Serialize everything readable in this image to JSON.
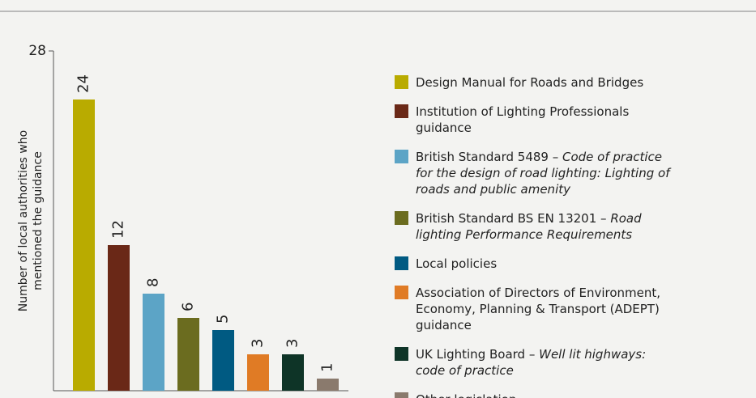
{
  "chart_data": {
    "type": "bar",
    "y_label": "Number of local authorities who mentioned the guidance",
    "categories": [
      "Design Manual for Roads and Bridges",
      "Institution of Lighting Professionals guidance",
      "British Standard 5489 – Code of practice for the design of road lighting: Lighting of roads and public amenity",
      "British Standard BS EN 13201 – Road lighting Performance Requirements",
      "Local policies",
      "Association of Directors of Environment, Economy, Planning & Transport (ADEPT) guidance",
      "UK Lighting Board – Well lit highways: code of practice",
      "Other legislation"
    ],
    "values": [
      24,
      12,
      8,
      6,
      5,
      3,
      3,
      1
    ],
    "colors": [
      "#b9ab00",
      "#6a2817",
      "#5ca4c6",
      "#6b6c1f",
      "#005a82",
      "#e07b25",
      "#0e3427",
      "#8a7a6d"
    ],
    "ylim": [
      0,
      28
    ],
    "yticks": [
      28
    ],
    "legend": "right"
  }
}
